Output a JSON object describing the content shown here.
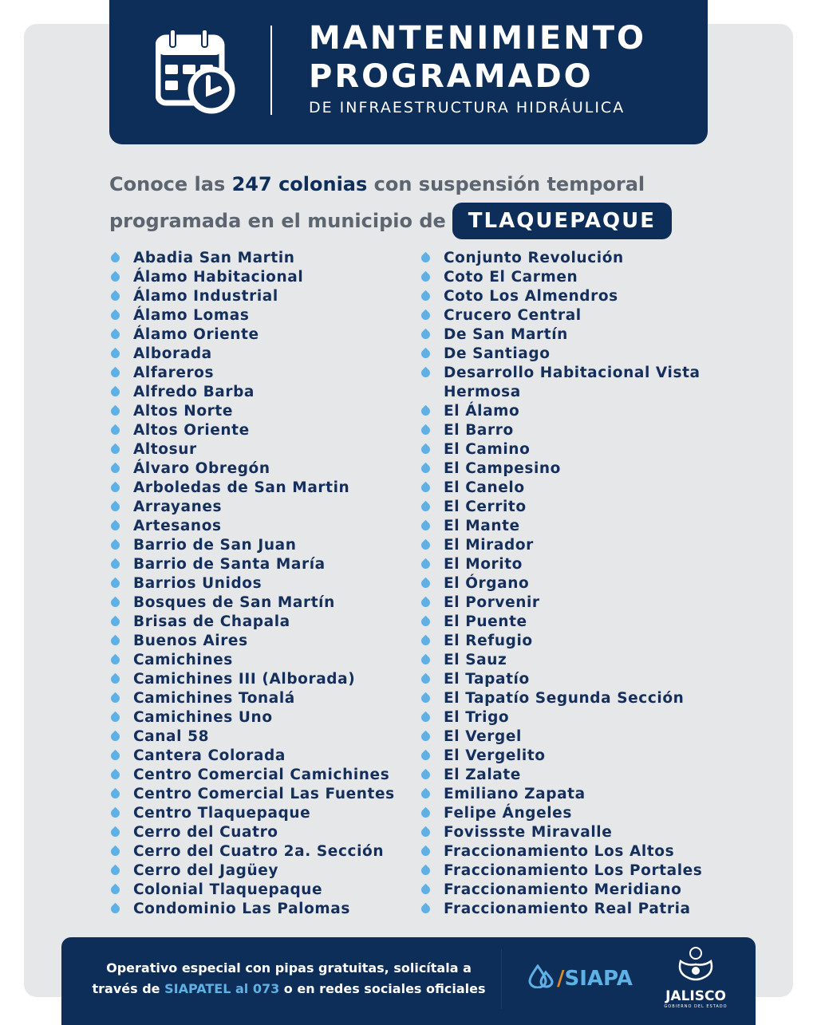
{
  "header": {
    "title_line1": "MANTENIMIENTO",
    "title_line2": "PROGRAMADO",
    "subtitle": "DE INFRAESTRUCTURA HIDRÁULICA",
    "icon": "calendar-clock-icon"
  },
  "intro": {
    "part1": "Conoce las ",
    "highlight": "247 colonias",
    "part2": " con suspensión temporal programada en el municipio de",
    "municipality": "TLAQUEPAQUE"
  },
  "colonias_left": [
    "Abadia San Martin",
    "Álamo Habitacional",
    "Álamo Industrial",
    "Álamo Lomas",
    "Álamo Oriente",
    "Alborada",
    "Alfareros",
    "Alfredo Barba",
    "Altos Norte",
    "Altos Oriente",
    "Altosur",
    "Álvaro Obregón",
    "Arboledas de San Martin",
    "Arrayanes",
    "Artesanos",
    "Barrio de San Juan",
    "Barrio de Santa María",
    "Barrios Unidos",
    "Bosques de San Martín",
    "Brisas de Chapala",
    "Buenos Aires",
    "Camichines",
    "Camichines III (Alborada)",
    "Camichines Tonalá",
    "Camichines Uno",
    "Canal 58",
    "Cantera Colorada",
    "Centro Comercial Camichines",
    "Centro Comercial Las Fuentes",
    "Centro Tlaquepaque",
    "Cerro del Cuatro",
    "Cerro del Cuatro 2a. Sección",
    "Cerro del Jagüey",
    "Colonial Tlaquepaque",
    "Condominio Las Palomas"
  ],
  "colonias_right": [
    "Conjunto Revolución",
    "Coto El Carmen",
    "Coto Los Almendros",
    "Crucero Central",
    "De San Martín",
    "De Santiago",
    "Desarrollo Habitacional Vista Hermosa",
    "El Álamo",
    "El Barro",
    "El Camino",
    "El Campesino",
    "El Canelo",
    "El Cerrito",
    "El Mante",
    "El Mirador",
    "El Morito",
    "El Órgano",
    "El Porvenir",
    "El Puente",
    "El Refugio",
    "El Sauz",
    "El Tapatío",
    "El Tapatío Segunda Sección",
    "El Trigo",
    "El Vergel",
    "El Vergelito",
    "El Zalate",
    "Emiliano Zapata",
    "Felipe Ángeles",
    "Fovissste Miravalle",
    "Fraccionamiento Los Altos",
    "Fraccionamiento Los Portales",
    "Fraccionamiento Meridiano",
    "Fraccionamiento Real Patria"
  ],
  "footer": {
    "text1": "Operativo especial con pipas gratuitas, solicítala a través de ",
    "highlight": "SIAPATEL al 073",
    "text2": " o en redes sociales oficiales",
    "siapa_logo": "SIAPA",
    "jalisco_logo": "JALISCO",
    "jalisco_sub": "GOBIERNO DEL ESTADO"
  },
  "colors": {
    "navy": "#0d2e58",
    "accent": "#5fb0e4",
    "background": "#e6e7e9"
  }
}
